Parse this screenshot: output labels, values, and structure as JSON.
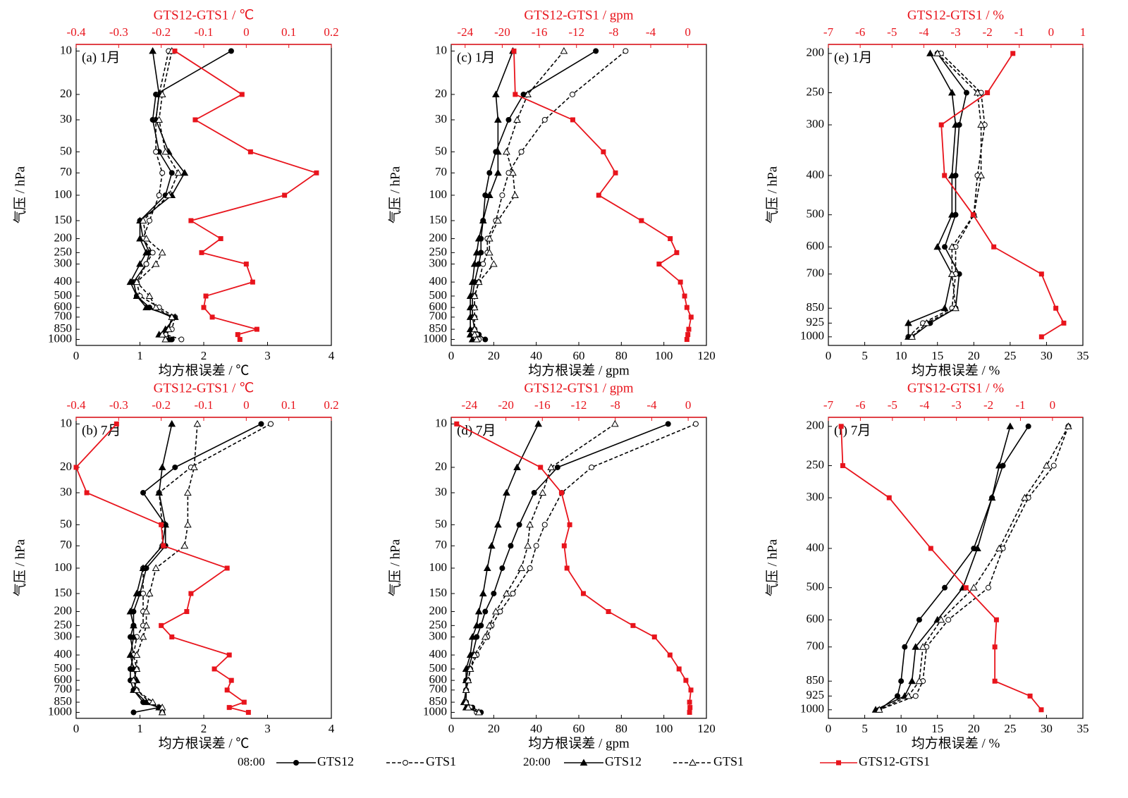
{
  "chart_data": [
    {
      "type": "line",
      "title": "(a) 1月",
      "x_label": "均方根误差 / ℃",
      "x2_label": "GTS12-GTS1 / ℃",
      "y_label": "气压 / hPa",
      "xlim": [
        0,
        4
      ],
      "xticks": [
        0,
        1,
        2,
        3,
        4
      ],
      "x2lim": [
        -0.4,
        0.2
      ],
      "x2ticks": [
        -0.4,
        -0.3,
        -0.2,
        -0.1,
        0.0,
        0.1,
        0.2
      ],
      "y_scale": "log",
      "y_inverted": true,
      "ylim": [
        9,
        1100
      ],
      "yticks": [
        10,
        20,
        30,
        50,
        70,
        100,
        150,
        200,
        250,
        300,
        400,
        500,
        600,
        700,
        850,
        1000
      ],
      "y": [
        10,
        20,
        30,
        50,
        70,
        100,
        150,
        200,
        250,
        300,
        400,
        500,
        600,
        700,
        850,
        925,
        1000
      ],
      "series": [
        {
          "name": "GTS12",
          "color": "#000000",
          "marker": "circle",
          "dashed": false,
          "axis": "x",
          "values": [
            2.43,
            1.25,
            1.2,
            1.3,
            1.5,
            1.4,
            1.0,
            1.05,
            1.15,
            1.1,
            0.9,
            0.95,
            1.15,
            1.5,
            1.45,
            1.4,
            1.5
          ]
        },
        {
          "name": "GTS1",
          "color": "#000000",
          "marker": "open-circle",
          "dashed": true,
          "axis": "x",
          "values": [
            1.45,
            1.3,
            1.25,
            1.25,
            1.35,
            1.3,
            1.15,
            1.05,
            1.2,
            1.1,
            0.95,
            1.0,
            1.3,
            1.55,
            1.5,
            1.4,
            1.65
          ]
        },
        {
          "name": "GTS12",
          "color": "#000000",
          "marker": "triangle",
          "dashed": false,
          "axis": "x",
          "values": [
            1.2,
            1.3,
            1.25,
            1.45,
            1.7,
            1.5,
            1.0,
            1.0,
            1.1,
            1.0,
            0.85,
            0.95,
            1.1,
            1.55,
            1.4,
            1.3,
            1.45
          ]
        },
        {
          "name": "GTS1",
          "color": "#000000",
          "marker": "open-triangle",
          "dashed": true,
          "axis": "x",
          "values": [
            1.5,
            1.35,
            1.3,
            1.4,
            1.6,
            1.45,
            1.05,
            1.1,
            1.35,
            1.25,
            0.95,
            1.15,
            1.25,
            1.5,
            1.45,
            1.35,
            1.4
          ]
        },
        {
          "name": "GTS12-GTS1",
          "color": "#e8141c",
          "marker": "square",
          "dashed": false,
          "axis": "x2",
          "values": [
            -0.168,
            -0.01,
            -0.12,
            0.01,
            0.165,
            0.09,
            -0.13,
            -0.06,
            -0.105,
            0.0,
            0.015,
            -0.095,
            -0.1,
            -0.08,
            0.025,
            -0.02,
            -0.015
          ]
        }
      ]
    },
    {
      "type": "line",
      "title": "(b) 7月",
      "x_label": "均方根误差 / ℃",
      "x2_label": "GTS12-GTS1 / ℃",
      "y_label": "气压 / hPa",
      "xlim": [
        0,
        4
      ],
      "xticks": [
        0,
        1,
        2,
        3,
        4
      ],
      "x2lim": [
        -0.4,
        0.2
      ],
      "x2ticks": [
        -0.4,
        -0.3,
        -0.2,
        -0.1,
        0.0,
        0.1,
        0.2
      ],
      "y_scale": "log",
      "y_inverted": true,
      "ylim": [
        9,
        1100
      ],
      "yticks": [
        10,
        20,
        30,
        50,
        70,
        100,
        150,
        200,
        250,
        300,
        400,
        500,
        600,
        700,
        850,
        1000
      ],
      "y": [
        10,
        20,
        30,
        50,
        70,
        100,
        150,
        200,
        250,
        300,
        400,
        500,
        600,
        700,
        850,
        925,
        1000
      ],
      "series": [
        {
          "name": "GTS12",
          "color": "#000000",
          "marker": "circle",
          "dashed": false,
          "axis": "x",
          "values": [
            2.9,
            1.55,
            1.05,
            1.4,
            1.4,
            1.1,
            1.0,
            0.9,
            0.9,
            0.85,
            0.9,
            0.85,
            0.85,
            0.9,
            1.05,
            1.3,
            0.9
          ]
        },
        {
          "name": "GTS1",
          "color": "#000000",
          "marker": "open-circle",
          "dashed": true,
          "axis": "x",
          "values": [
            3.05,
            1.8,
            1.3,
            1.35,
            1.35,
            1.05,
            1.05,
            1.05,
            1.05,
            0.95,
            0.9,
            0.95,
            0.9,
            0.95,
            1.15,
            1.3,
            1.35
          ]
        },
        {
          "name": "GTS12",
          "color": "#000000",
          "marker": "triangle",
          "dashed": false,
          "axis": "x",
          "values": [
            1.5,
            1.35,
            1.3,
            1.4,
            1.35,
            1.05,
            0.95,
            0.85,
            0.9,
            0.9,
            0.85,
            0.9,
            0.95,
            0.9,
            1.1,
            1.3,
            1.35
          ]
        },
        {
          "name": "GTS1",
          "color": "#000000",
          "marker": "open-triangle",
          "dashed": true,
          "axis": "x",
          "values": [
            1.9,
            1.85,
            1.75,
            1.75,
            1.7,
            1.25,
            1.15,
            1.1,
            1.1,
            1.05,
            0.95,
            0.95,
            0.9,
            0.95,
            1.2,
            1.35,
            1.35
          ]
        },
        {
          "name": "GTS12-GTS1",
          "color": "#e8141c",
          "marker": "square",
          "dashed": false,
          "axis": "x2",
          "values": [
            -0.305,
            -0.4,
            -0.375,
            -0.2,
            -0.195,
            -0.045,
            -0.13,
            -0.14,
            -0.2,
            -0.175,
            -0.04,
            -0.075,
            -0.035,
            -0.045,
            -0.005,
            -0.04,
            0.005
          ]
        }
      ]
    },
    {
      "type": "line",
      "title": "(c) 1月",
      "x_label": "均方根误差 / gpm",
      "x2_label": "GTS12-GTS1 / gpm",
      "y_label": "气压 / hPa",
      "xlim": [
        0,
        120
      ],
      "xticks": [
        0,
        20,
        40,
        60,
        80,
        100,
        120
      ],
      "x2lim": [
        -25.5,
        2
      ],
      "x2ticks": [
        -24,
        -20,
        -16,
        -12,
        -8,
        -4,
        0
      ],
      "y_scale": "log",
      "y_inverted": true,
      "ylim": [
        9,
        1100
      ],
      "yticks": [
        10,
        20,
        30,
        50,
        70,
        100,
        150,
        200,
        250,
        300,
        400,
        500,
        600,
        700,
        850,
        1000
      ],
      "y": [
        10,
        20,
        30,
        50,
        70,
        100,
        150,
        200,
        250,
        300,
        400,
        500,
        600,
        700,
        850,
        925,
        1000
      ],
      "series": [
        {
          "name": "GTS12",
          "color": "#000000",
          "marker": "circle",
          "dashed": false,
          "axis": "x",
          "values": [
            68,
            34,
            27,
            21,
            18,
            16,
            15,
            14,
            14,
            13,
            11,
            10,
            10,
            10,
            11,
            13,
            16
          ]
        },
        {
          "name": "GTS1",
          "color": "#000000",
          "marker": "open-circle",
          "dashed": true,
          "axis": "x",
          "values": [
            82,
            57,
            44,
            33,
            27,
            24,
            21,
            17,
            17,
            15,
            13,
            11,
            11,
            11,
            11,
            12,
            13
          ]
        },
        {
          "name": "GTS12",
          "color": "#000000",
          "marker": "triangle",
          "dashed": false,
          "axis": "x",
          "values": [
            29,
            21,
            22,
            22,
            22,
            18,
            15,
            13,
            12,
            11,
            10,
            9,
            9,
            9,
            9,
            9,
            10
          ]
        },
        {
          "name": "GTS1",
          "color": "#000000",
          "marker": "open-triangle",
          "dashed": true,
          "axis": "x",
          "values": [
            53,
            36,
            31,
            26,
            29,
            30,
            22,
            18,
            18,
            20,
            13,
            11,
            11,
            11,
            11,
            11,
            12
          ]
        },
        {
          "name": "GTS12-GTS1",
          "color": "#e8141c",
          "marker": "square",
          "dashed": false,
          "axis": "x2",
          "values": [
            -18.74,
            -18.6,
            -12.4,
            -9.1,
            -7.8,
            -9.6,
            -5.0,
            -1.9,
            -1.2,
            -3.1,
            -0.8,
            -0.35,
            -0.1,
            0.35,
            0.1,
            0.0,
            -0.1
          ]
        }
      ]
    },
    {
      "type": "line",
      "title": "(d) 7月",
      "x_label": "均方根误差 / gpm",
      "x2_label": "GTS12-GTS1 / gpm",
      "y_label": "气压 / hPa",
      "xlim": [
        0,
        120
      ],
      "xticks": [
        0,
        20,
        40,
        60,
        80,
        100,
        120
      ],
      "x2lim": [
        -26,
        2
      ],
      "x2ticks": [
        -24,
        -20,
        -16,
        -12,
        -8,
        -4,
        0
      ],
      "y_scale": "log",
      "y_inverted": true,
      "ylim": [
        9,
        1100
      ],
      "yticks": [
        10,
        20,
        30,
        50,
        70,
        100,
        150,
        200,
        250,
        300,
        400,
        500,
        600,
        700,
        850,
        1000
      ],
      "y": [
        10,
        20,
        30,
        50,
        70,
        100,
        150,
        200,
        250,
        300,
        400,
        500,
        600,
        700,
        850,
        925,
        1000
      ],
      "series": [
        {
          "name": "GTS12",
          "color": "#000000",
          "marker": "circle",
          "dashed": false,
          "axis": "x",
          "values": [
            102,
            50,
            39,
            32,
            28,
            24,
            20,
            16,
            14,
            12,
            10,
            8,
            7,
            7,
            7,
            10,
            14
          ]
        },
        {
          "name": "GTS1",
          "color": "#000000",
          "marker": "open-circle",
          "dashed": true,
          "axis": "x",
          "values": [
            115,
            66,
            52,
            44,
            40,
            37,
            29,
            23,
            19,
            17,
            12,
            9,
            8,
            7,
            7,
            9,
            12
          ]
        },
        {
          "name": "GTS12",
          "color": "#000000",
          "marker": "triangle",
          "dashed": false,
          "axis": "x",
          "values": [
            41,
            31,
            26,
            22,
            19,
            17,
            15,
            13,
            12,
            10,
            9,
            7,
            7,
            7,
            6,
            7,
            13
          ]
        },
        {
          "name": "GTS1",
          "color": "#000000",
          "marker": "open-triangle",
          "dashed": true,
          "axis": "x",
          "values": [
            77,
            47,
            43,
            37,
            36,
            33,
            26,
            21,
            18,
            16,
            11,
            9,
            8,
            7,
            7,
            8,
            13
          ]
        },
        {
          "name": "GTS12-GTS1",
          "color": "#e8141c",
          "marker": "square",
          "dashed": false,
          "axis": "x2",
          "values": [
            -25.4,
            -16.2,
            -13.9,
            -13.0,
            -13.6,
            -13.3,
            -11.5,
            -8.75,
            -6.05,
            -3.7,
            -2.0,
            -1.0,
            -0.25,
            0.3,
            0.15,
            0.2,
            0.15
          ]
        }
      ]
    },
    {
      "type": "line",
      "title": "(e) 1月",
      "x_label": "均方根误差 / %",
      "x2_label": "GTS12-GTS1 / %",
      "y_label": "气压 / hPa",
      "xlim": [
        0,
        35
      ],
      "xticks": [
        0,
        5,
        10,
        15,
        20,
        25,
        30,
        35
      ],
      "x2lim": [
        -7,
        1
      ],
      "x2ticks": [
        -7,
        -6,
        -5,
        -4,
        -3,
        -2,
        -1,
        0,
        1
      ],
      "y_scale": "log",
      "y_inverted": true,
      "ylim": [
        190,
        1050
      ],
      "yticks": [
        200,
        250,
        300,
        400,
        500,
        600,
        700,
        850,
        925,
        1000
      ],
      "y": [
        200,
        250,
        300,
        400,
        500,
        600,
        700,
        850,
        925,
        1000
      ],
      "series": [
        {
          "name": "GTS12",
          "color": "#000000",
          "marker": "circle",
          "dashed": false,
          "axis": "x",
          "values": [
            15,
            19,
            18,
            17.5,
            17.5,
            16,
            18,
            17.5,
            14,
            11.5
          ]
        },
        {
          "name": "GTS1",
          "color": "#000000",
          "marker": "open-circle",
          "dashed": true,
          "axis": "x",
          "values": [
            15.5,
            21,
            21.5,
            20.5,
            20,
            17.5,
            17.5,
            17,
            13,
            11
          ]
        },
        {
          "name": "GTS12",
          "color": "#000000",
          "marker": "triangle",
          "dashed": false,
          "axis": "x",
          "values": [
            14,
            17,
            17.5,
            17,
            17,
            15,
            17,
            16,
            11,
            11
          ]
        },
        {
          "name": "GTS1",
          "color": "#000000",
          "marker": "open-triangle",
          "dashed": true,
          "axis": "x",
          "values": [
            15,
            20.5,
            21,
            21,
            20,
            17,
            17,
            17.5,
            13.5,
            11.5
          ]
        },
        {
          "name": "GTS12-GTS1",
          "color": "#e8141c",
          "marker": "square",
          "dashed": false,
          "axis": "x2",
          "values": [
            -1.2,
            -2.0,
            -3.45,
            -3.35,
            -2.45,
            -1.8,
            -0.3,
            0.15,
            0.4,
            -0.3
          ]
        }
      ]
    },
    {
      "type": "line",
      "title": "(f) 7月",
      "x_label": "均方根误差 / %",
      "x2_label": "GTS12-GTS1 / %",
      "y_label": "气压 / hPa",
      "xlim": [
        0,
        35
      ],
      "xticks": [
        0,
        5,
        10,
        15,
        20,
        25,
        30,
        35
      ],
      "x2lim": [
        -7,
        0.95
      ],
      "x2ticks": [
        -7,
        -6,
        -5,
        -4,
        -3,
        -2,
        -1,
        0
      ],
      "y_scale": "log",
      "y_inverted": true,
      "ylim": [
        190,
        1050
      ],
      "yticks": [
        200,
        250,
        300,
        400,
        500,
        600,
        700,
        850,
        925,
        1000
      ],
      "y": [
        200,
        250,
        300,
        400,
        500,
        600,
        700,
        850,
        925,
        1000
      ],
      "series": [
        {
          "name": "GTS12",
          "color": "#000000",
          "marker": "circle",
          "dashed": false,
          "axis": "x",
          "values": [
            27.5,
            24,
            22.5,
            20,
            16,
            12.5,
            10.5,
            10,
            9.5,
            7
          ]
        },
        {
          "name": "GTS1",
          "color": "#000000",
          "marker": "open-circle",
          "dashed": true,
          "axis": "x",
          "values": [
            33,
            31,
            27.5,
            24,
            22,
            16.5,
            13.5,
            13,
            12,
            7
          ]
        },
        {
          "name": "GTS12",
          "color": "#000000",
          "marker": "triangle",
          "dashed": false,
          "axis": "x",
          "values": [
            25,
            23.5,
            22.5,
            20.5,
            18.5,
            15,
            12,
            11.5,
            10.5,
            6.5
          ]
        },
        {
          "name": "GTS1",
          "color": "#000000",
          "marker": "open-triangle",
          "dashed": true,
          "axis": "x",
          "values": [
            33,
            30,
            27,
            23.5,
            20,
            15.5,
            13,
            12.5,
            11,
            7
          ]
        },
        {
          "name": "GTS12-GTS1",
          "color": "#e8141c",
          "marker": "square",
          "dashed": false,
          "axis": "x2",
          "values": [
            -6.6,
            -6.55,
            -5.1,
            -3.8,
            -2.7,
            -1.75,
            -1.8,
            -1.8,
            -0.7,
            -0.35
          ]
        }
      ]
    }
  ],
  "legend": {
    "groups": [
      "08:00",
      "20:00"
    ]
  }
}
